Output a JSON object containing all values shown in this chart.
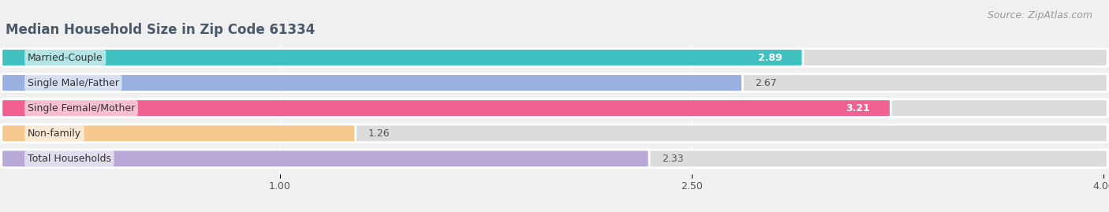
{
  "title": "Median Household Size in Zip Code 61334",
  "source": "Source: ZipAtlas.com",
  "categories": [
    "Married-Couple",
    "Single Male/Father",
    "Single Female/Mother",
    "Non-family",
    "Total Households"
  ],
  "values": [
    2.89,
    2.67,
    3.21,
    1.26,
    2.33
  ],
  "bar_colors": [
    "#40c0c0",
    "#9ab0e0",
    "#f06090",
    "#f5c890",
    "#b8a8d8"
  ],
  "value_colors": [
    "white",
    "#555555",
    "white",
    "#555555",
    "#555555"
  ],
  "label_text_colors": [
    "#333333",
    "#333333",
    "#333333",
    "#333333",
    "#333333"
  ],
  "x_min": 0.0,
  "x_max": 4.0,
  "x_ticks": [
    1.0,
    2.5,
    4.0
  ],
  "background_color": "#f0f0f0",
  "bar_bg_color": "#dcdcdc",
  "title_fontsize": 12,
  "source_fontsize": 9,
  "label_fontsize": 9,
  "value_fontsize": 9,
  "tick_fontsize": 9,
  "title_color": "#4a5a6a",
  "figsize": [
    14.06,
    2.69
  ],
  "dpi": 100
}
